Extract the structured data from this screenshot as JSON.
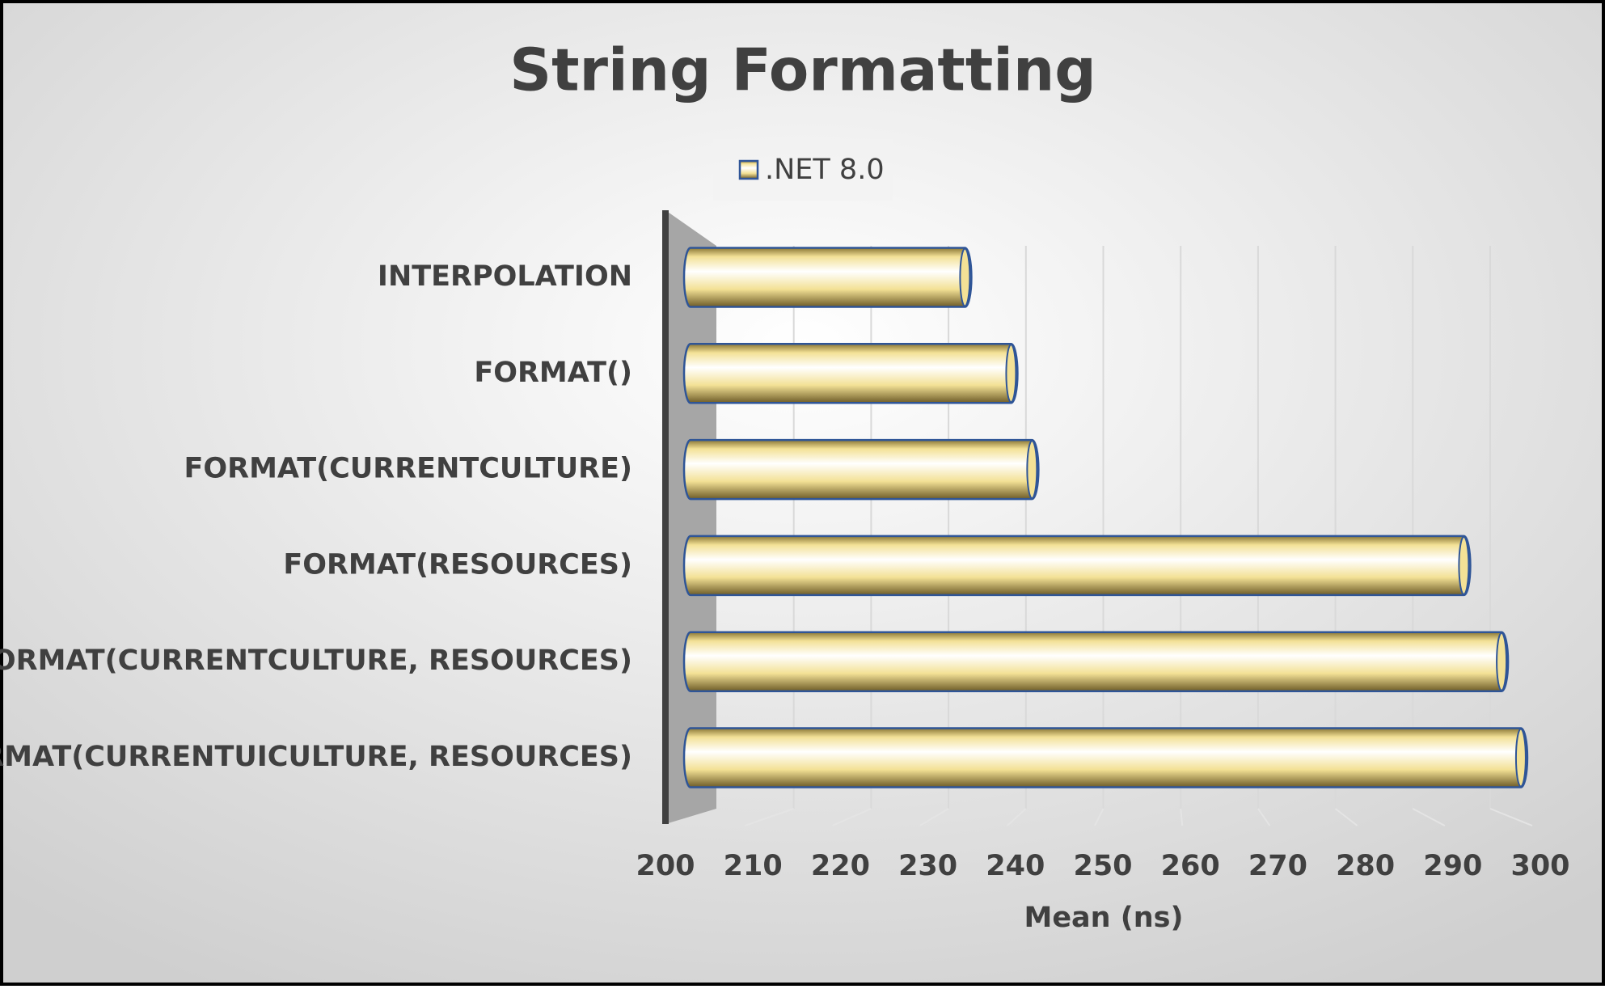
{
  "chart_data": {
    "type": "bar",
    "orientation": "horizontal",
    "title": "String Formatting",
    "categories": [
      "INTERPOLATION",
      "FORMAT()",
      "FORMAT(CURRENTCULTURE)",
      "FORMAT(RESOURCES)",
      "FORMAT(CURRENTCULTURE, RESOURCES)",
      "FORMAT(CURRENTUICULTURE, RESOURCES)"
    ],
    "series": [
      {
        "name": ".NET 8.0",
        "color": "#f3e196",
        "values": [
          233.5,
          239,
          241.5,
          293,
          297.5,
          299.8
        ]
      }
    ],
    "xlim": [
      200,
      300
    ],
    "xticks": [
      200,
      210,
      220,
      230,
      240,
      250,
      260,
      270,
      280,
      290,
      300
    ],
    "xlabel": "Mean (ns)",
    "grid": true,
    "legend": "top"
  }
}
